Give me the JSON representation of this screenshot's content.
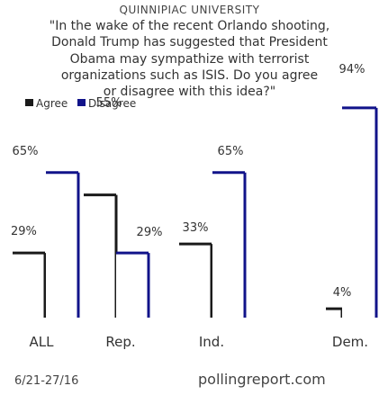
{
  "chart_data": {
    "type": "bar",
    "source": "QUINNIPIAC UNIVERSITY",
    "question_lines": [
      "\"In the wake of the recent Orlando shooting,",
      "Donald Trump has suggested that President",
      "Obama may sympathize with terrorist",
      "organizations such as ISIS. Do you agree",
      "or disagree with this idea?\""
    ],
    "categories": [
      "ALL",
      "Rep.",
      "Ind.",
      "Dem."
    ],
    "series": [
      {
        "name": "Agree",
        "values": [
          29,
          55,
          33,
          4
        ],
        "labels": [
          "29%",
          "55%",
          "33%",
          "4%"
        ],
        "color": "#1a1a1a"
      },
      {
        "name": "Disagree",
        "values": [
          65,
          29,
          65,
          94
        ],
        "labels": [
          "65%",
          "29%",
          "65%",
          "94%"
        ],
        "color": "#11138a"
      }
    ],
    "ylim": [
      0,
      100
    ],
    "legend_position": "top-left",
    "date": "6/21-27/16",
    "website": "pollingreport.com",
    "colors": {
      "agree": "#1a1a1a",
      "disagree": "#11138a",
      "bar_fill": "#ffffff"
    }
  }
}
